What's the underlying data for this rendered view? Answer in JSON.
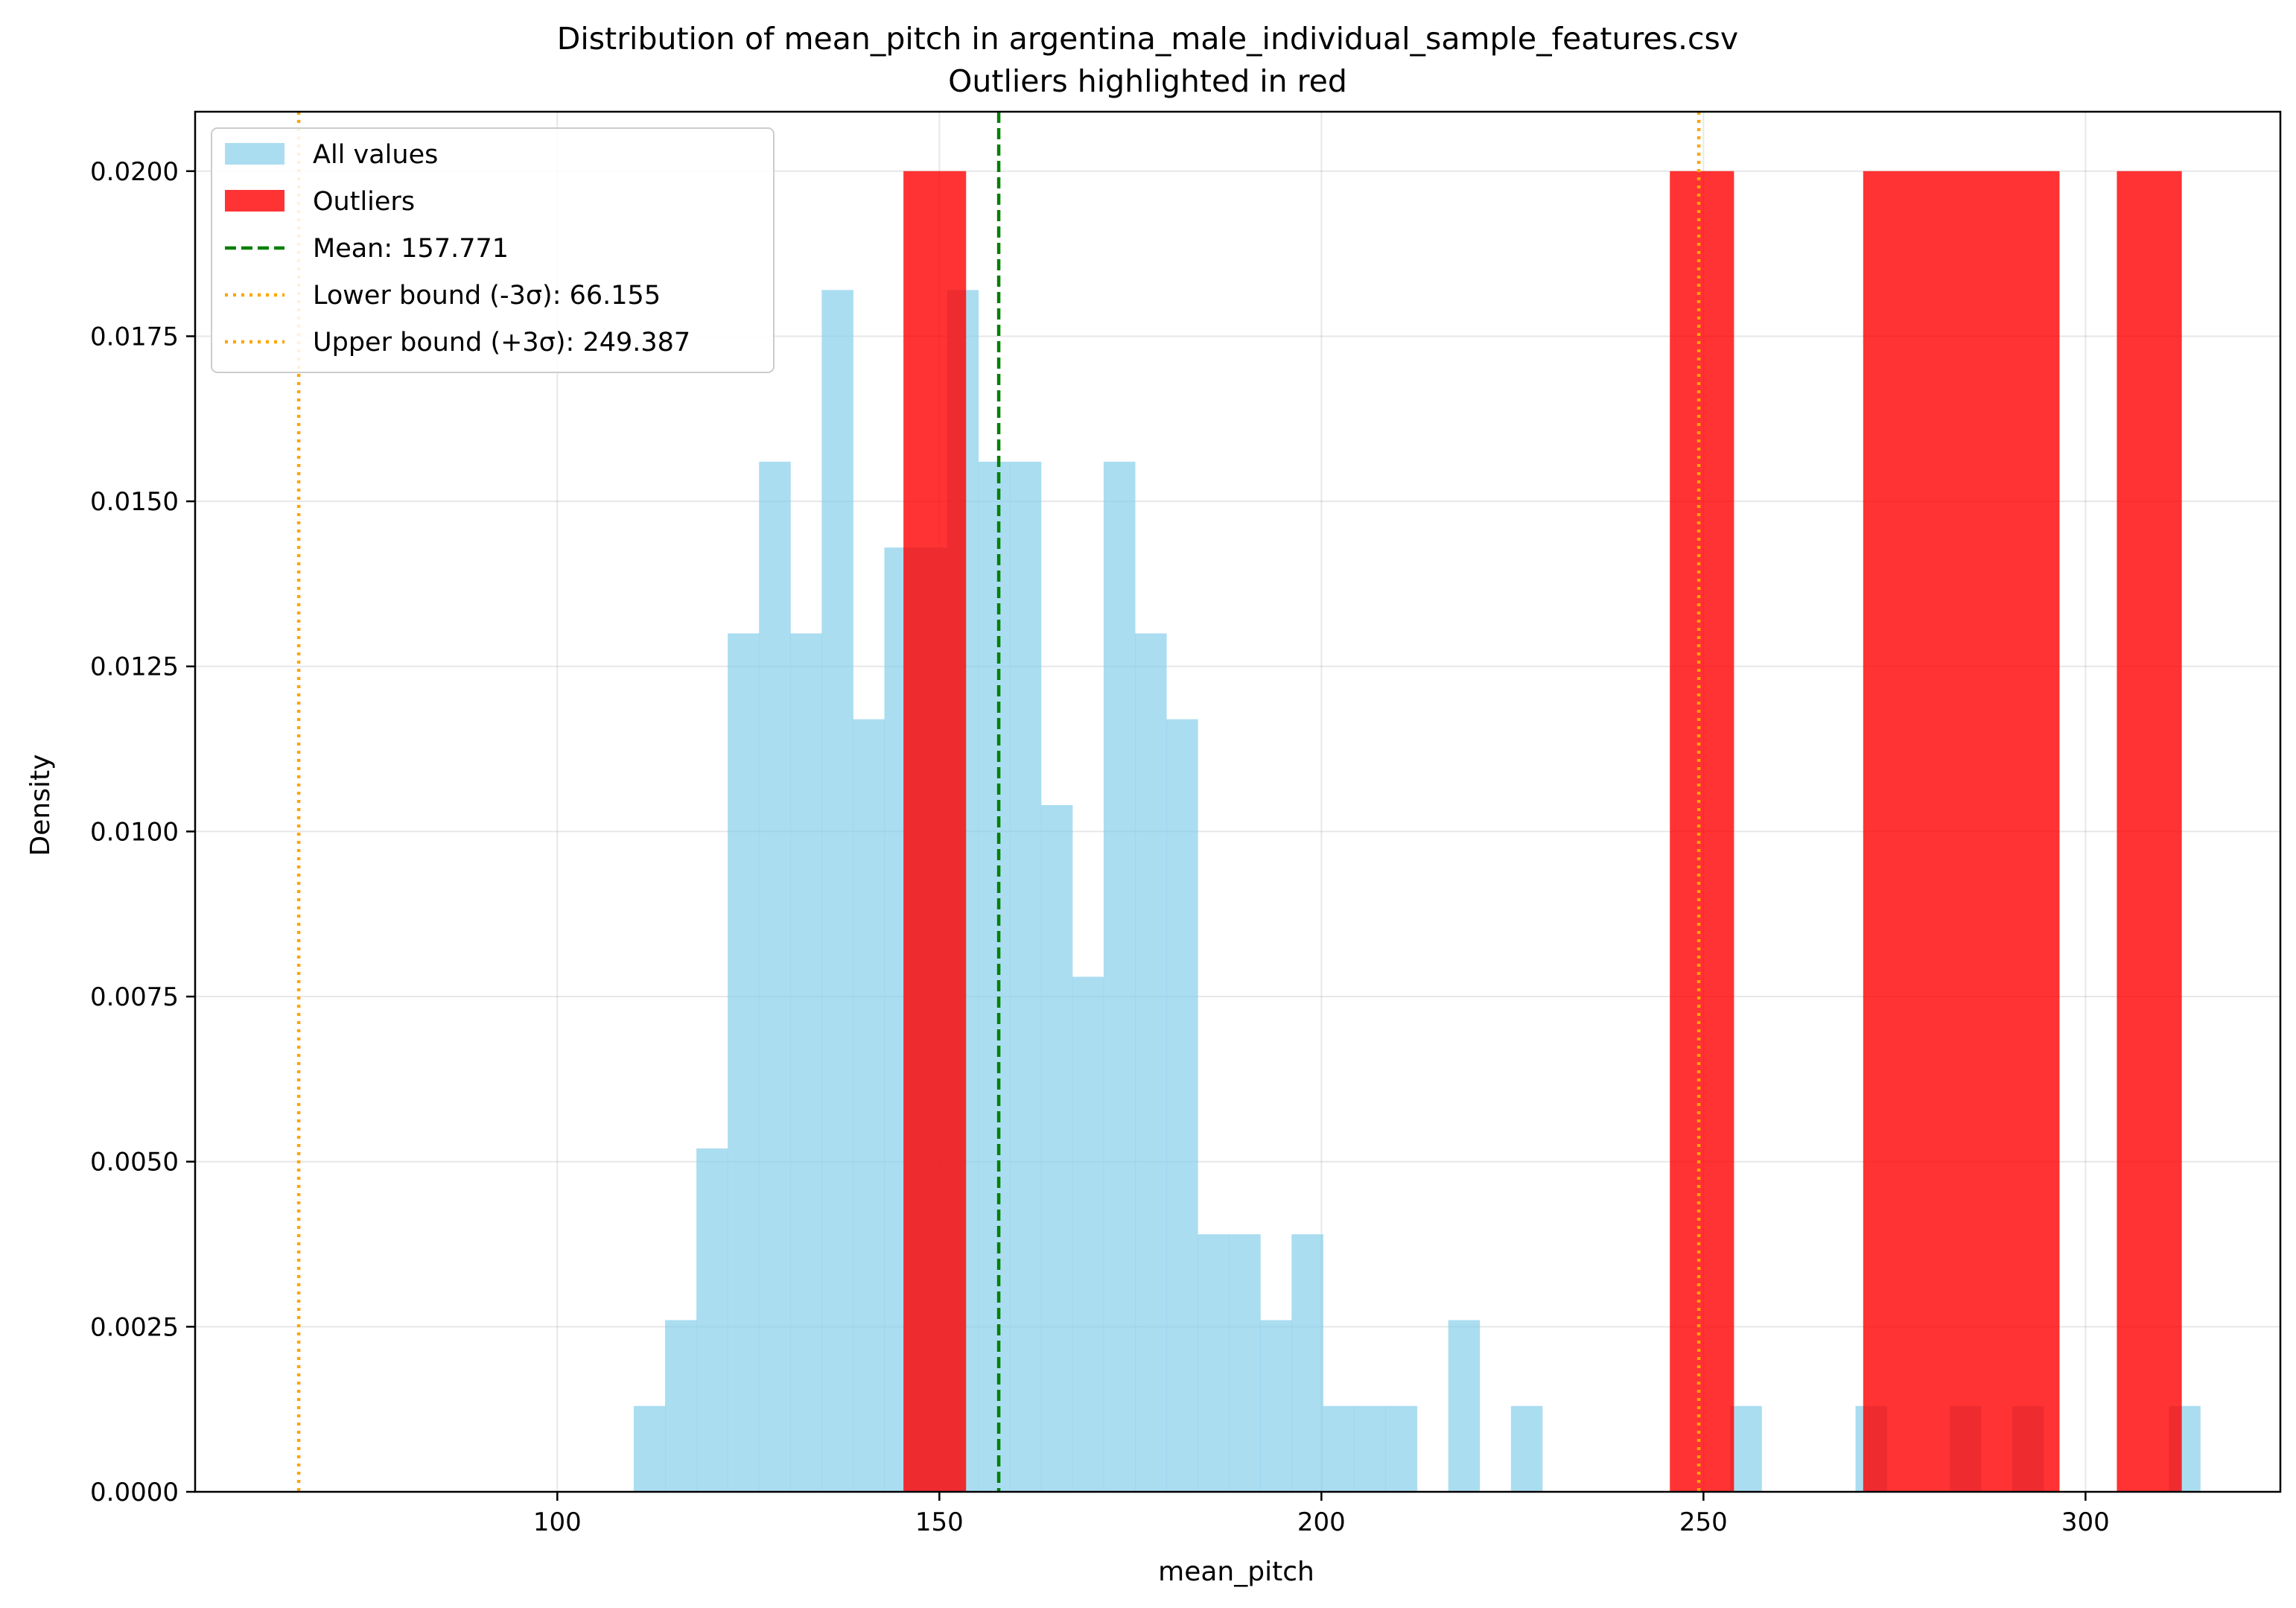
{
  "chart_data": {
    "type": "bar",
    "subtype": "histogram",
    "title": "Distribution of mean_pitch in argentina_male_individual_sample_features.csv",
    "subtitle": "Outliers highlighted in red",
    "xlabel": "mean_pitch",
    "ylabel": "Density",
    "xlim": [
      52.6,
      325.5
    ],
    "ylim": [
      0,
      0.0209
    ],
    "xticks": [
      100,
      150,
      200,
      250,
      300
    ],
    "xtick_labels": [
      "100",
      "150",
      "200",
      "250",
      "300"
    ],
    "yticks": [
      0.0,
      0.0025,
      0.005,
      0.0075,
      0.01,
      0.0125,
      0.015,
      0.0175,
      0.02
    ],
    "ytick_labels": [
      "0.0000",
      "0.0025",
      "0.0050",
      "0.0075",
      "0.0100",
      "0.0125",
      "0.0150",
      "0.0175",
      "0.0200"
    ],
    "grid": true,
    "legend_position": "top-left",
    "colors": {
      "all_values": "#87CEEB",
      "outliers": "#FF0000",
      "mean": "#008000",
      "bounds": "#FFA500"
    },
    "series": [
      {
        "name": "All values",
        "bins": [
          [
            110.0,
            114.1,
            0.0013
          ],
          [
            114.1,
            118.2,
            0.0026
          ],
          [
            118.2,
            122.3,
            0.0052
          ],
          [
            122.3,
            126.4,
            0.013
          ],
          [
            126.4,
            130.5,
            0.0156
          ],
          [
            130.5,
            134.6,
            0.013
          ],
          [
            134.6,
            138.7,
            0.0182
          ],
          [
            138.7,
            142.8,
            0.0117
          ],
          [
            142.8,
            146.9,
            0.0143
          ],
          [
            146.9,
            151.0,
            0.0143
          ],
          [
            151.0,
            155.1,
            0.0182
          ],
          [
            155.1,
            159.2,
            0.0156
          ],
          [
            159.2,
            163.3,
            0.0156
          ],
          [
            163.3,
            167.4,
            0.0104
          ],
          [
            167.4,
            171.5,
            0.0078
          ],
          [
            171.5,
            175.6,
            0.0156
          ],
          [
            175.6,
            179.7,
            0.013
          ],
          [
            179.7,
            183.8,
            0.0117
          ],
          [
            183.8,
            187.9,
            0.0039
          ],
          [
            187.9,
            192.0,
            0.0039
          ],
          [
            192.0,
            196.1,
            0.0026
          ],
          [
            196.1,
            200.2,
            0.0039
          ],
          [
            200.2,
            204.3,
            0.0013
          ],
          [
            204.3,
            208.4,
            0.0013
          ],
          [
            208.4,
            212.5,
            0.0013
          ],
          [
            216.6,
            220.7,
            0.0026
          ],
          [
            224.8,
            228.9,
            0.0013
          ],
          [
            253.5,
            257.6,
            0.0013
          ],
          [
            269.9,
            274.0,
            0.0013
          ],
          [
            282.2,
            286.3,
            0.0013
          ],
          [
            290.4,
            294.5,
            0.0013
          ],
          [
            310.9,
            315.0,
            0.0013
          ]
        ]
      },
      {
        "name": "Outliers",
        "bins": [
          [
            145.3,
            153.5,
            0.02
          ],
          [
            245.6,
            254.0,
            0.02
          ],
          [
            270.9,
            296.6,
            0.02
          ],
          [
            304.1,
            312.6,
            0.02
          ]
        ]
      }
    ],
    "reference_lines": [
      {
        "label": "Mean: 157.771",
        "x": 157.771,
        "style": "dashed",
        "color": "#008000"
      },
      {
        "label": "Lower bound (-3σ): 66.155",
        "x": 66.155,
        "style": "dotted",
        "color": "#FFA500"
      },
      {
        "label": "Upper bound (+3σ): 249.387",
        "x": 249.387,
        "style": "dotted",
        "color": "#FFA500"
      }
    ]
  }
}
